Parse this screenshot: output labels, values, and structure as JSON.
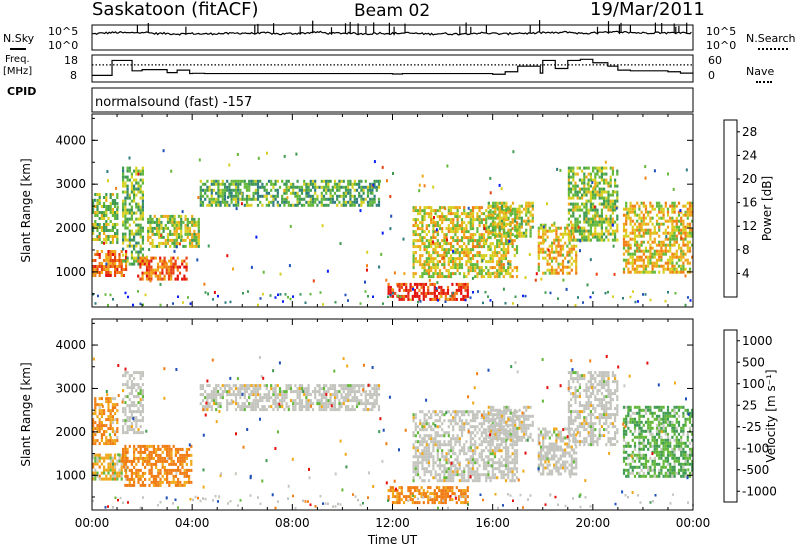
{
  "header": {
    "station": "Saskatoon (fitACF)",
    "beam": "Beam 02",
    "date": "19/Mar/2011"
  },
  "labels": {
    "nsky": "N.Sky",
    "nsearch": "N.Search",
    "freq": "Freq.",
    "freq_unit": "[MHz]",
    "nave": "Nave",
    "cpid": "CPID",
    "cpid_value": "normalsound (fast) -157",
    "exp_hi": "10^5",
    "exp_lo": "10^0",
    "freq_ticks": [
      "18",
      "8"
    ],
    "nave_ticks": [
      "60",
      "0"
    ]
  },
  "colors": {
    "power_scale": [
      "#0a1ff5",
      "#1f4fb8",
      "#2e7d7f",
      "#3f9a52",
      "#63b83a",
      "#d7d020",
      "#f0a818",
      "#f07c12",
      "#e8400f",
      "#e4100c"
    ],
    "velocity_scale": [
      "#e4100c",
      "#f07c12",
      "#f0a818",
      "#c8c8c0",
      "#63b83a",
      "#3f9a52",
      "#1f4fb8"
    ],
    "ground_scatter": "#c4c4be"
  },
  "chart_data": [
    {
      "type": "line",
      "panel": "noise",
      "series": [
        {
          "name": "N.Sky",
          "x": [
            0,
            0.5,
            1,
            1.5,
            2,
            2.5,
            3,
            3.5,
            4,
            4.5,
            5,
            5.5,
            6,
            6.5,
            7,
            7.5,
            8,
            8.5,
            9,
            9.5,
            10,
            10.5,
            11,
            11.5,
            12,
            12.5,
            13,
            13.5,
            14,
            14.5,
            15,
            15.5,
            16,
            16.5,
            17,
            17.5,
            18,
            18.5,
            19,
            19.5,
            20,
            20.5,
            21,
            21.5,
            22,
            22.5,
            23,
            23.5,
            24
          ],
          "y": [
            3.2,
            3.4,
            3.5,
            3.4,
            3.6,
            3.3,
            3.3,
            3.2,
            3.3,
            3.2,
            3.3,
            3.3,
            3.4,
            3.3,
            3.4,
            3.2,
            3.3,
            3.4,
            3.6,
            3.3,
            3.4,
            3.3,
            3.2,
            3.4,
            3.3,
            3.4,
            3.3,
            3.2,
            3.3,
            3.2,
            3.3,
            3.4,
            3.3,
            3.2,
            3.4,
            3.3,
            3.5,
            3.4,
            3.6,
            3.3,
            3.4,
            3.5,
            3.6,
            3.5,
            3.4,
            3.5,
            3.4,
            3.5,
            3.4
          ]
        },
        {
          "name": "N.Search",
          "x": [],
          "y": []
        }
      ],
      "xlim": [
        0,
        24
      ],
      "ylim": [
        0,
        5
      ]
    },
    {
      "type": "line",
      "panel": "frequency",
      "series": [
        {
          "name": "Freq.",
          "x": [
            0,
            0.5,
            0.8,
            1,
            1.6,
            2,
            3,
            3.4,
            3.9,
            4,
            4.5,
            5,
            7,
            9,
            10,
            11,
            12,
            12.4,
            13,
            14,
            14.5,
            15,
            16,
            16.5,
            17,
            17.5,
            17.9,
            18,
            18.3,
            18.5,
            19,
            19.5,
            20,
            20.6,
            21,
            21.5,
            22,
            22.5,
            23,
            23.5,
            24
          ],
          "y": [
            10,
            10,
            16.5,
            16.5,
            12,
            12.5,
            11.2,
            12.3,
            10.8,
            10.9,
            10.8,
            10.8,
            10.8,
            10.8,
            10.8,
            10.8,
            10.6,
            10.8,
            10.8,
            10.8,
            10.8,
            10.8,
            10.5,
            11.6,
            14,
            14,
            11,
            16.5,
            16.5,
            13,
            16.5,
            17,
            15.5,
            14,
            12.3,
            12,
            12,
            12,
            11.6,
            11,
            10.8
          ]
        },
        {
          "name": "Nave",
          "x": [
            0,
            24
          ],
          "y": [
            38,
            38
          ]
        }
      ],
      "xlim": [
        0,
        24
      ],
      "ylim": [
        8,
        18
      ],
      "y2lim": [
        0,
        60
      ]
    },
    {
      "type": "heatmap",
      "panel": "power",
      "xlabel": "",
      "ylabel": "Slant Range [km]",
      "xlim": [
        0,
        24
      ],
      "ylim": [
        200,
        4600
      ],
      "yticks": [
        1000,
        2000,
        3000,
        4000
      ],
      "colorbar": {
        "label": "Power [dB]",
        "ticks": [
          4,
          8,
          12,
          16,
          20,
          24,
          28
        ],
        "range": [
          0,
          30
        ]
      },
      "regions": [
        {
          "t0": 0.0,
          "t1": 1.4,
          "r0": 900,
          "r1": 1500,
          "value": 23
        },
        {
          "t0": 0.0,
          "t1": 1.0,
          "r0": 1700,
          "r1": 2800,
          "value": 14
        },
        {
          "t0": 1.2,
          "t1": 2.0,
          "r0": 1200,
          "r1": 3400,
          "value": 13
        },
        {
          "t0": 1.8,
          "t1": 3.8,
          "r0": 850,
          "r1": 1350,
          "value": 24
        },
        {
          "t0": 2.2,
          "t1": 4.3,
          "r0": 1600,
          "r1": 2300,
          "value": 15
        },
        {
          "t0": 4.3,
          "t1": 11.5,
          "r0": 2500,
          "r1": 3100,
          "value": 12
        },
        {
          "t0": 11.8,
          "t1": 15.0,
          "r0": 400,
          "r1": 750,
          "value": 27
        },
        {
          "t0": 12.8,
          "t1": 17.0,
          "r0": 900,
          "r1": 2500,
          "value": 17
        },
        {
          "t0": 15.8,
          "t1": 17.6,
          "r0": 1800,
          "r1": 2600,
          "value": 16
        },
        {
          "t0": 17.8,
          "t1": 19.3,
          "r0": 1000,
          "r1": 2100,
          "value": 19
        },
        {
          "t0": 19.0,
          "t1": 21.0,
          "r0": 1700,
          "r1": 3400,
          "value": 14
        },
        {
          "t0": 21.2,
          "t1": 24.0,
          "r0": 1000,
          "r1": 2600,
          "value": 18
        }
      ]
    },
    {
      "type": "heatmap",
      "panel": "velocity",
      "xlabel": "Time UT",
      "ylabel": "Slant Range [km]",
      "xlim": [
        0,
        24
      ],
      "ylim": [
        200,
        4600
      ],
      "yticks": [
        1000,
        2000,
        3000,
        4000
      ],
      "xticks": [
        "00:00",
        "04:00",
        "08:00",
        "12:00",
        "16:00",
        "20:00",
        "00:00"
      ],
      "colorbar": {
        "label": "Velocity [m s⁻¹]",
        "ticks": [
          "1000",
          "500",
          "100",
          "25",
          "-25",
          "-100",
          "-500",
          "-1000"
        ]
      },
      "regions": [
        {
          "t0": 0.0,
          "t1": 1.0,
          "r0": 1700,
          "r1": 2800,
          "value": -100,
          "scatter": "ionospheric"
        },
        {
          "t0": 0.0,
          "t1": 1.4,
          "r0": 900,
          "r1": 1500,
          "value": -30,
          "scatter": "ionospheric"
        },
        {
          "t0": 1.2,
          "t1": 4.0,
          "r0": 750,
          "r1": 1700,
          "value": -150,
          "scatter": "ionospheric"
        },
        {
          "t0": 1.2,
          "t1": 2.0,
          "r0": 2000,
          "r1": 3400,
          "value": 0,
          "scatter": "ground"
        },
        {
          "t0": 4.3,
          "t1": 11.5,
          "r0": 2500,
          "r1": 3100,
          "value": 0,
          "scatter": "ground"
        },
        {
          "t0": 11.8,
          "t1": 15.0,
          "r0": 400,
          "r1": 750,
          "value": -150,
          "scatter": "ionospheric"
        },
        {
          "t0": 12.8,
          "t1": 17.0,
          "r0": 900,
          "r1": 2500,
          "value": 0,
          "scatter": "ground"
        },
        {
          "t0": 15.8,
          "t1": 17.6,
          "r0": 1800,
          "r1": 2600,
          "value": 0,
          "scatter": "ground"
        },
        {
          "t0": 17.8,
          "t1": 19.3,
          "r0": 1000,
          "r1": 2100,
          "value": 0,
          "scatter": "ground"
        },
        {
          "t0": 19.0,
          "t1": 21.0,
          "r0": 1700,
          "r1": 3400,
          "value": 0,
          "scatter": "ground"
        },
        {
          "t0": 21.2,
          "t1": 24.0,
          "r0": 1000,
          "r1": 2600,
          "value": 80,
          "scatter": "ionospheric"
        }
      ]
    }
  ]
}
